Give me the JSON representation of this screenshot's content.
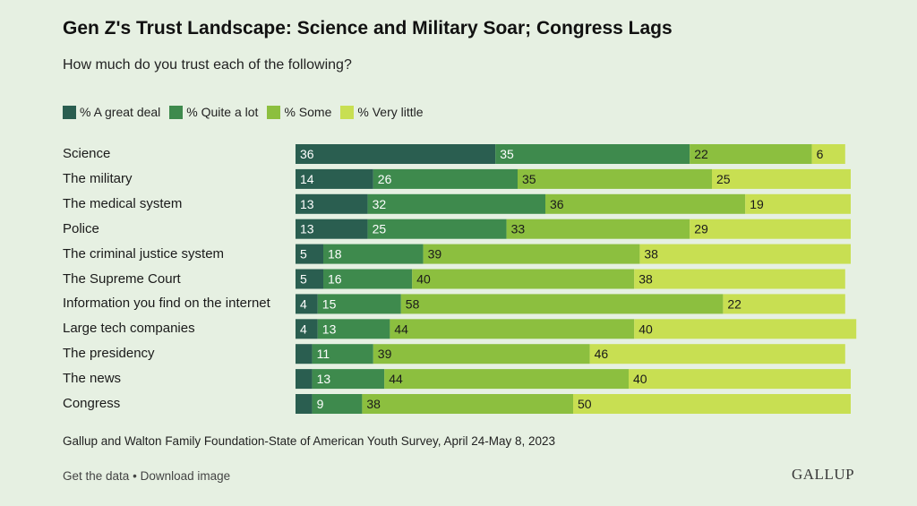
{
  "title": "Gen Z's Trust Landscape: Science and Military Soar; Congress Lags",
  "subtitle": "How much do you trust each of the following?",
  "legend": [
    {
      "label": "% A great deal",
      "color": "#2a5e50"
    },
    {
      "label": "% Quite a lot",
      "color": "#3e8a4d"
    },
    {
      "label": "% Some",
      "color": "#8cbf3f"
    },
    {
      "label": "% Very little",
      "color": "#c8df52"
    }
  ],
  "source": "Gallup and Walton Family Foundation-State of American Youth Survey, April 24-May 8, 2023",
  "footer": {
    "get_data": "Get the data",
    "separator": "•",
    "download": "Download image"
  },
  "brand": "GALLUP",
  "chart_data": {
    "type": "bar",
    "orientation": "horizontal",
    "stacked": true,
    "categories": [
      "Science",
      "The military",
      "The medical system",
      "Police",
      "The criminal justice system",
      "The Supreme Court",
      "Information you find on the internet",
      "Large tech companies",
      "The presidency",
      "The news",
      "Congress"
    ],
    "series": [
      {
        "name": "% A great deal",
        "color": "#2a5e50",
        "values": [
          36,
          14,
          13,
          13,
          5,
          5,
          4,
          4,
          3,
          3,
          3
        ],
        "labels": [
          "36",
          "14",
          "13",
          "13",
          "5",
          "5",
          "4",
          "4",
          "",
          "",
          ""
        ]
      },
      {
        "name": "% Quite a lot",
        "color": "#3e8a4d",
        "values": [
          35,
          26,
          32,
          25,
          18,
          16,
          15,
          13,
          11,
          13,
          9
        ],
        "labels": [
          "35",
          "26",
          "32",
          "25",
          "18",
          "16",
          "15",
          "13",
          "11",
          "13",
          "9"
        ]
      },
      {
        "name": "% Some",
        "color": "#8cbf3f",
        "values": [
          22,
          35,
          36,
          33,
          39,
          40,
          58,
          44,
          39,
          44,
          38
        ],
        "labels": [
          "22",
          "35",
          "36",
          "33",
          "39",
          "40",
          "58",
          "44",
          "39",
          "44",
          "38"
        ]
      },
      {
        "name": "% Very little",
        "color": "#c8df52",
        "values": [
          6,
          25,
          19,
          29,
          38,
          38,
          22,
          40,
          46,
          40,
          50
        ],
        "labels": [
          "6",
          "25",
          "19",
          "29",
          "38",
          "38",
          "22",
          "40",
          "46",
          "40",
          "50"
        ]
      }
    ],
    "xlim": [
      0,
      100
    ],
    "grid": false,
    "legend_position": "top-left"
  }
}
